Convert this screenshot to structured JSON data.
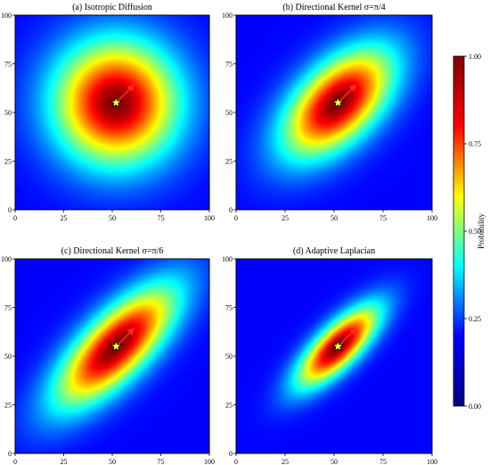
{
  "chart_data": [
    {
      "type": "heatmap",
      "title": "(a) Isotropic Diffusion",
      "x_ticks": [
        0,
        25,
        50,
        75,
        100
      ],
      "y_ticks": [
        0,
        25,
        50,
        75,
        100
      ],
      "xlim": [
        0,
        100
      ],
      "ylim": [
        0,
        100
      ],
      "center": [
        52,
        55
      ],
      "orientation_deg": 45,
      "spread_major": 22,
      "spread_minor": 22,
      "arrow": {
        "from": [
          52,
          55
        ],
        "to": [
          61,
          64
        ]
      },
      "marker": "star",
      "grid": false
    },
    {
      "type": "heatmap",
      "title": "(b) Directional Kernel σ=π/4",
      "x_ticks": [
        0,
        25,
        50,
        75,
        100
      ],
      "y_ticks": [
        0,
        25,
        50,
        75,
        100
      ],
      "xlim": [
        0,
        100
      ],
      "ylim": [
        0,
        100
      ],
      "center": [
        52,
        55
      ],
      "orientation_deg": 45,
      "spread_major": 24,
      "spread_minor": 13,
      "arrow": {
        "from": [
          52,
          55
        ],
        "to": [
          61,
          64
        ]
      },
      "marker": "star",
      "grid": false
    },
    {
      "type": "heatmap",
      "title": "(c) Directional Kernel σ=π/6",
      "x_ticks": [
        0,
        25,
        50,
        75,
        100
      ],
      "y_ticks": [
        0,
        25,
        50,
        75,
        100
      ],
      "xlim": [
        0,
        100
      ],
      "ylim": [
        0,
        100
      ],
      "center": [
        52,
        55
      ],
      "orientation_deg": 45,
      "spread_major": 28,
      "spread_minor": 11,
      "arrow": {
        "from": [
          52,
          55
        ],
        "to": [
          61,
          64
        ]
      },
      "marker": "star",
      "grid": false
    },
    {
      "type": "heatmap",
      "title": "(d) Adaptive Laplacian",
      "x_ticks": [
        0,
        25,
        50,
        75,
        100
      ],
      "y_ticks": [
        0,
        25,
        50,
        75,
        100
      ],
      "xlim": [
        0,
        100
      ],
      "ylim": [
        0,
        100
      ],
      "center": [
        52,
        55
      ],
      "orientation_deg": 45,
      "spread_major": 19,
      "spread_minor": 7,
      "arrow": {
        "from": [
          52,
          55
        ],
        "to": [
          61,
          64
        ]
      },
      "marker": "star",
      "grid": false
    }
  ],
  "colorbar": {
    "label": "Probability",
    "ticks": [
      "0.00",
      "0.25",
      "0.50",
      "0.75",
      "1.00"
    ],
    "tick_values": [
      0,
      0.25,
      0.5,
      0.75,
      1.0
    ],
    "range": [
      0,
      1
    ],
    "colormap": "jet",
    "stops": [
      "#00007f",
      "#0000ff",
      "#00ffff",
      "#ffff00",
      "#ff0000",
      "#7f0000"
    ]
  },
  "colors": {
    "arrow": "#ff2a1a",
    "star_fill": "#ffff33",
    "star_stroke": "#000000",
    "frame": "#000000",
    "background": "#ffffff"
  }
}
